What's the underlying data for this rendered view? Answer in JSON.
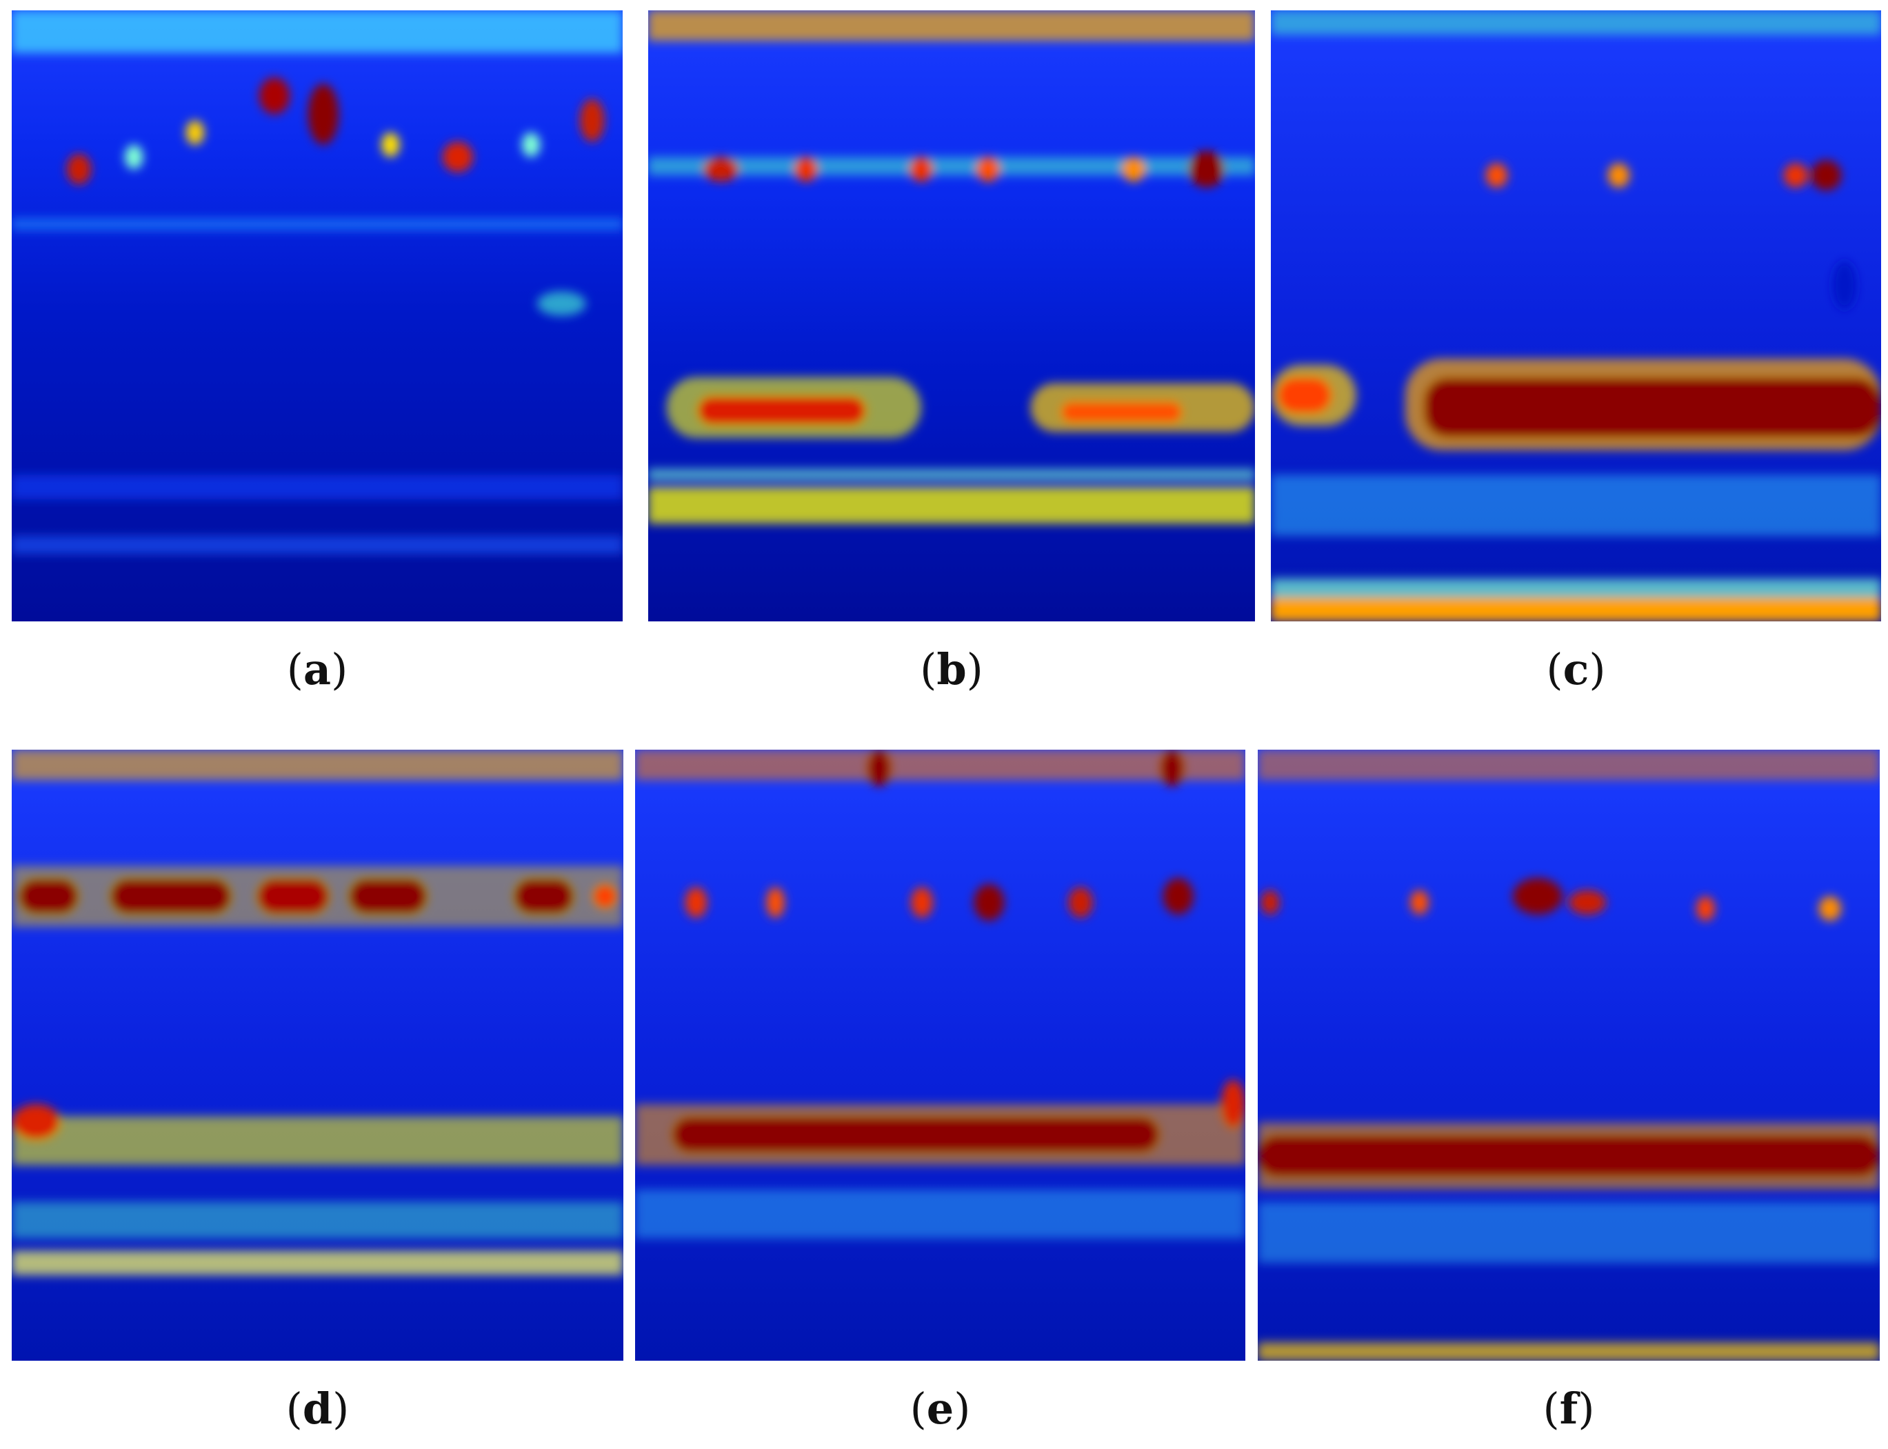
{
  "figure": {
    "panels": [
      {
        "id": "a",
        "caption_open": "(",
        "caption_letter": "a",
        "caption_close": ")"
      },
      {
        "id": "b",
        "caption_open": "(",
        "caption_letter": "b",
        "caption_close": ")"
      },
      {
        "id": "c",
        "caption_open": "(",
        "caption_letter": "c",
        "caption_close": ")"
      },
      {
        "id": "d",
        "caption_open": "(",
        "caption_letter": "d",
        "caption_close": ")"
      },
      {
        "id": "e",
        "caption_open": "(",
        "caption_letter": "e",
        "caption_close": ")"
      },
      {
        "id": "f",
        "caption_open": "(",
        "caption_letter": "f",
        "caption_close": ")"
      }
    ],
    "colormap": [
      "#00008b",
      "#0000ff",
      "#00bfff",
      "#7fffd4",
      "#ffff00",
      "#ff8c00",
      "#ff0000",
      "#8b0000"
    ]
  }
}
